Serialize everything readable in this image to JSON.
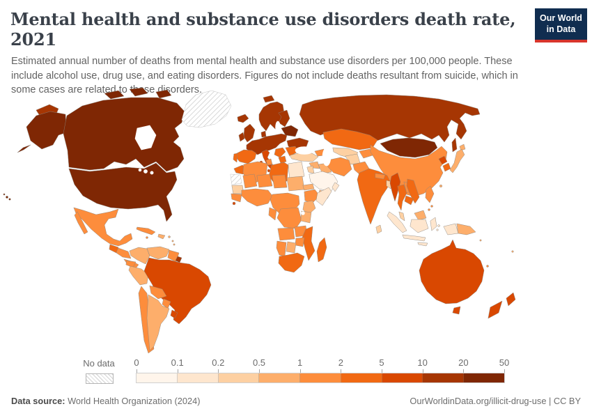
{
  "header": {
    "title": "Mental health and substance use disorders death rate, 2021",
    "subtitle": "Estimated annual number of deaths from mental health and substance use disorders per 100,000 people. These include alcohol use, drug use, and eating disorders. Figures do not include deaths resultant from suicide, which in some cases are related to these disorders.",
    "logo_line1": "Our World",
    "logo_line2": "in Data"
  },
  "colors": {
    "logo_navy": "#102d50",
    "logo_red": "#d8352c",
    "title_text": "#3a414a",
    "subtitle_text": "#636363",
    "legend_text": "#6b6b6b"
  },
  "legend": {
    "no_data_label": "No data",
    "ticks": [
      "0",
      "0.1",
      "0.2",
      "0.5",
      "1",
      "2",
      "5",
      "10",
      "20",
      "50"
    ]
  },
  "footer": {
    "source_label": "Data source:",
    "source_value": " World Health Organization (2024)",
    "right_text": "OurWorldinData.org/illicit-drug-use | CC BY"
  },
  "chart_data": {
    "type": "choropleth",
    "title": "Mental health and substance use disorders death rate, 2021",
    "unit": "deaths per 100,000 people",
    "year": "2021",
    "legend_position": "bottom",
    "bin_edges": [
      "0",
      "0.1",
      "0.2",
      "0.5",
      "1",
      "2",
      "5",
      "10",
      "20",
      "50"
    ],
    "bin_labels": [
      "0-0.1",
      "0.1-0.2",
      "0.2-0.5",
      "0.5-1",
      "1-2",
      "2-5",
      "5-10",
      "10-20",
      "20-50"
    ],
    "bin_colors": [
      "#fff5eb",
      "#fee6ce",
      "#fdd0a2",
      "#fdae6b",
      "#fd8d3c",
      "#f16913",
      "#d94801",
      "#a63603",
      "#7f2704"
    ],
    "no_data_color": "hatch",
    "regions": {
      "greenland": -1,
      "w-sahara": -1,
      "canada": 8,
      "arctic-islands": 8,
      "alaska": 8,
      "usa": 8,
      "hawaii": 8,
      "chukotka": 7,
      "russia": 7,
      "sakhalin": 7,
      "svalbard": 7,
      "iceland": 7,
      "uk": 7,
      "ireland": 7,
      "norway-sweden": 7,
      "finland": 7,
      "denmark": 7,
      "europe-west": 7,
      "belarus-baltics": 8,
      "ukraine": 7,
      "romania-bulgaria": 5,
      "balkans": 5,
      "greece": 5,
      "italy": 6,
      "spain": 5,
      "portugal": 5,
      "turkey": 2,
      "syria": 3,
      "iraq": 3,
      "jordan-israel": 2,
      "saudi": 0,
      "yemen": 3,
      "oman": 1,
      "iran": 4,
      "caucasus": 4,
      "kazakhstan": 5,
      "uzbek-turkmen": 2,
      "kyrgyz-tajik": 4,
      "afghanistan": 2,
      "pakistan": 4,
      "india": 5,
      "nepal-bhutan": 4,
      "bangladesh": 2,
      "sri-lanka": 2,
      "mongolia": 8,
      "china": 4,
      "north-korea": 6,
      "south-korea": 5,
      "japan": 3,
      "taiwan": 3,
      "hainan": 4,
      "myanmar": 6,
      "thailand": 5,
      "laos": 4,
      "vietnam": 5,
      "cambodia": 5,
      "malaysia-peninsula": 2,
      "malaysia-borneo": 3,
      "indonesia": 1,
      "west-papua": 1,
      "png": 3,
      "philippines": 4,
      "australia": 6,
      "tasmania": 6,
      "new-zealand": 6,
      "pacific-islands": 3,
      "new-caledonia": 4,
      "mexico": 4,
      "baja": 4,
      "guatemala": 5,
      "honduras-nicaragua": 4,
      "costa-panama": 4,
      "cuba": 4,
      "hispaniola": 3,
      "jamaica": 4,
      "puerto-rico": 3,
      "lesser-antilles": 3,
      "colombia": 3,
      "venezuela": 3,
      "guyanas": 4,
      "french-guiana": 7,
      "ecuador": 4,
      "peru": 3,
      "brazil": 6,
      "bolivia": 4,
      "paraguay": 4,
      "chile": 4,
      "argentina": 3,
      "uruguay": 6,
      "morocco": 5,
      "algeria": 4,
      "tunisia": 4,
      "libya": 5,
      "egypt": 1,
      "mauritania": 2,
      "mali": 4,
      "niger": 4,
      "chad": 4,
      "sudan": 3,
      "eritrea": 3,
      "senegal-guinea": 4,
      "sierra-leone": 6,
      "west-africa": 4,
      "ethiopia": 4,
      "somalia": 1,
      "central-africa": 4,
      "drc": 4,
      "gabon-congo": 4,
      "kenya": 3,
      "tanzania": 3,
      "angola": 4,
      "zambia": 4,
      "mozambique": 5,
      "zimbabwe": 4,
      "botswana": 3,
      "namibia": 4,
      "south-africa": 5,
      "madagascar": 5
    }
  }
}
